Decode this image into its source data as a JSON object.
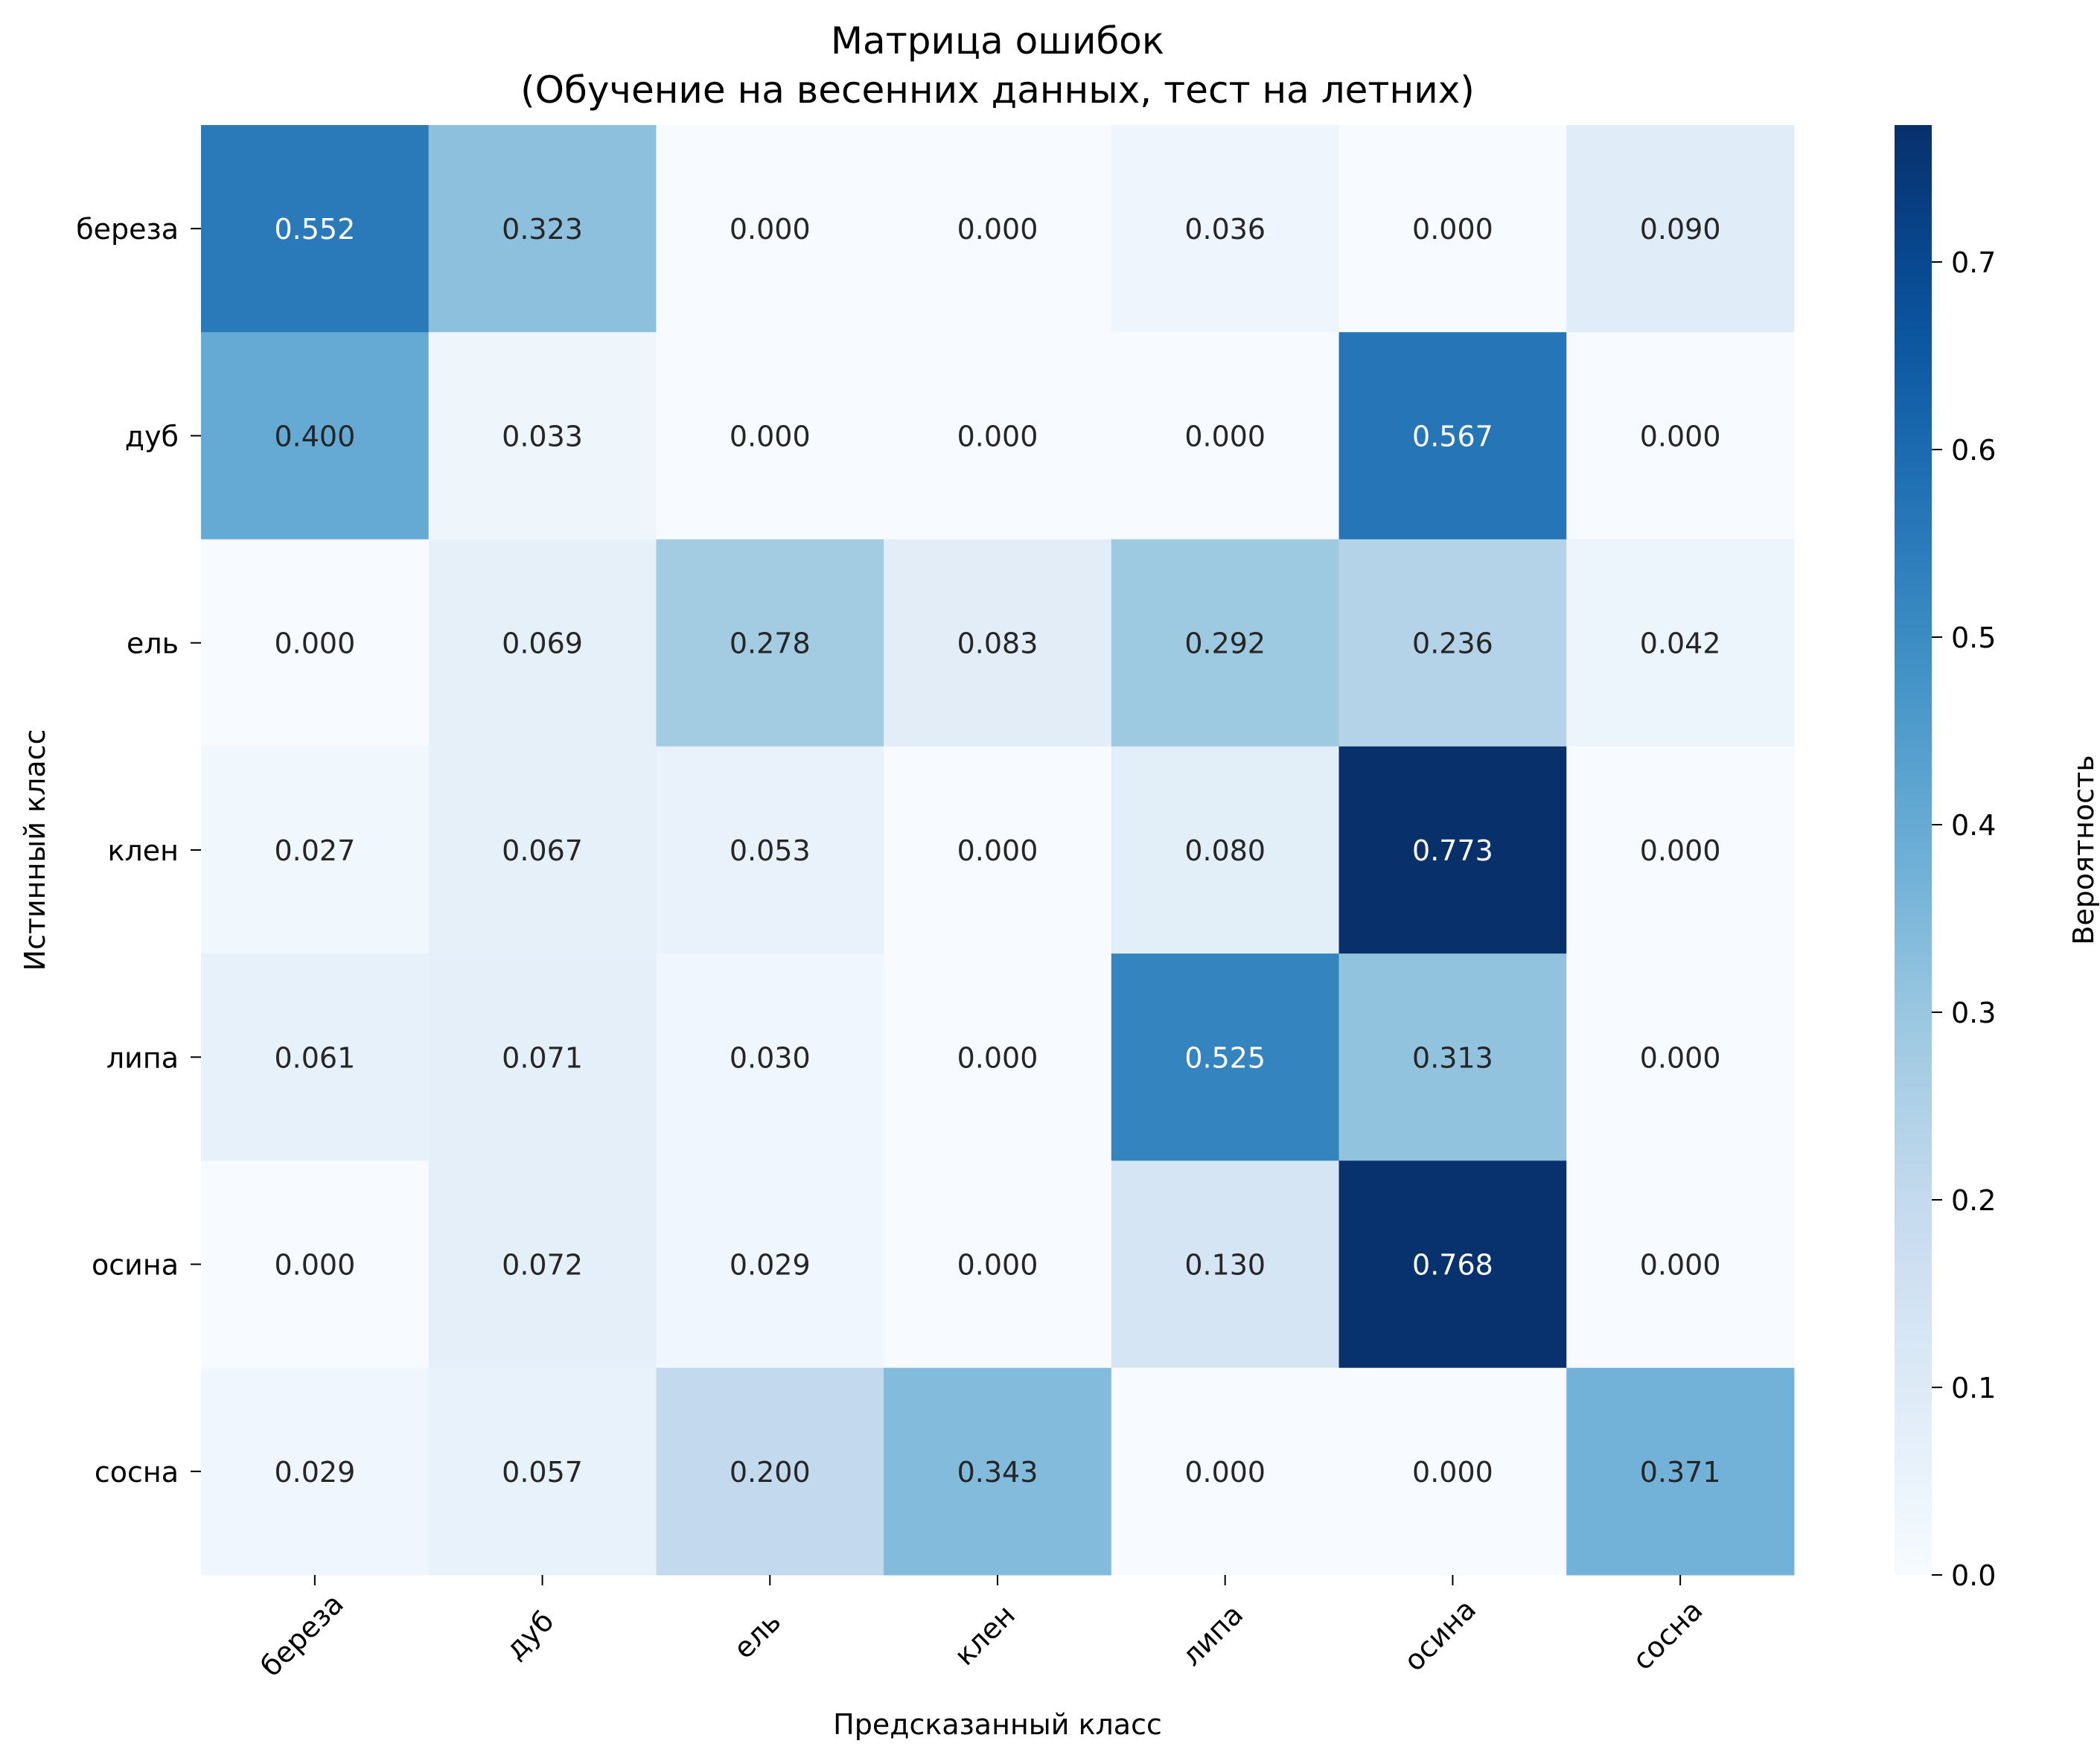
{
  "chart_data": {
    "type": "heatmap",
    "title_line1": "Матрица ошибок",
    "title_line2": "(Обучение на весенних данных, тест на летних)",
    "xlabel": "Предсказанный класс",
    "ylabel": "Истинный класс",
    "x_categories": [
      "береза",
      "дуб",
      "ель",
      "клен",
      "липа",
      "осина",
      "сосна"
    ],
    "y_categories": [
      "береза",
      "дуб",
      "ель",
      "клен",
      "липа",
      "осина",
      "сосна"
    ],
    "values": [
      [
        0.552,
        0.323,
        0.0,
        0.0,
        0.036,
        0.0,
        0.09
      ],
      [
        0.4,
        0.033,
        0.0,
        0.0,
        0.0,
        0.567,
        0.0
      ],
      [
        0.0,
        0.069,
        0.278,
        0.083,
        0.292,
        0.236,
        0.042
      ],
      [
        0.027,
        0.067,
        0.053,
        0.0,
        0.08,
        0.773,
        0.0
      ],
      [
        0.061,
        0.071,
        0.03,
        0.0,
        0.525,
        0.313,
        0.0
      ],
      [
        0.0,
        0.072,
        0.029,
        0.0,
        0.13,
        0.768,
        0.0
      ],
      [
        0.029,
        0.057,
        0.2,
        0.343,
        0.0,
        0.0,
        0.371
      ]
    ],
    "colorbar": {
      "label": "Вероятность",
      "vmin": 0.0,
      "vmax": 0.773,
      "ticks": [
        "0.0",
        "0.1",
        "0.2",
        "0.3",
        "0.4",
        "0.5",
        "0.6",
        "0.7"
      ],
      "colormap": "Blues"
    }
  }
}
